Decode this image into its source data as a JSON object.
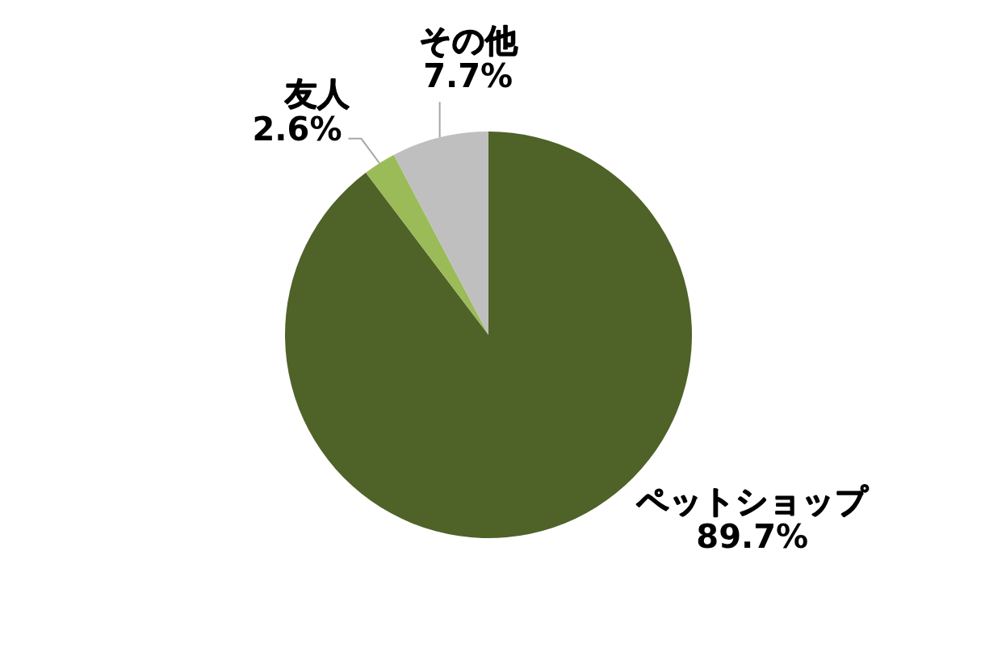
{
  "chart_data": {
    "type": "pie",
    "categories": [
      "ペットショップ",
      "友人",
      "その他"
    ],
    "values": [
      89.7,
      2.6,
      7.7
    ],
    "colors": [
      "#4f6228",
      "#9bbb59",
      "#bfbfbf"
    ],
    "value_labels": [
      "89.7%",
      "2.6%",
      "7.7%"
    ]
  }
}
